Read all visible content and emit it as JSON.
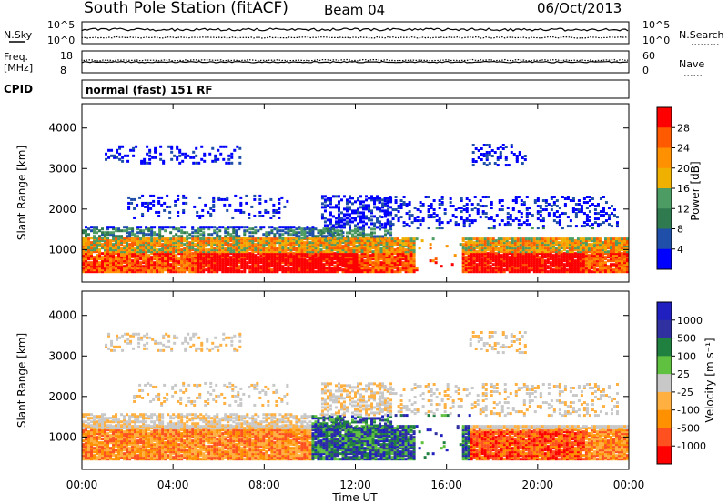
{
  "header": {
    "station": "South Pole Station (fitACF)",
    "beam": "Beam 04",
    "date": "06/Oct/2013"
  },
  "panels": {
    "nsky": {
      "label": "N.Sky",
      "left_ticks": [
        "10^5",
        "10^0"
      ],
      "right_ticks": [
        "10^5",
        "10^0"
      ],
      "right_label": "N.Search"
    },
    "freq": {
      "label_line1": "Freq.",
      "label_line2": "[MHz]",
      "left_ticks": [
        "18",
        "8"
      ],
      "right_ticks": [
        "60",
        "0"
      ],
      "right_label": "Nave"
    },
    "cpid": {
      "label": "CPID",
      "text": "normal (fast) 151 RF"
    }
  },
  "colors": {
    "power_scale": [
      "#0000ff",
      "#1f4fa8",
      "#2f7a4f",
      "#4d9c63",
      "#f0b000",
      "#ff9000",
      "#ff5a00",
      "#ff0000"
    ],
    "velocity_scale": [
      "#ff0000",
      "#ff5020",
      "#ff9000",
      "#ffb040",
      "#c8c8c8",
      "#60c040",
      "#208040",
      "#3030a0",
      "#2020c0"
    ]
  },
  "chart_data": [
    {
      "type": "heatmap",
      "name": "power",
      "ylabel": "Slant Range [km]",
      "yticks": [
        1000,
        2000,
        3000,
        4000
      ],
      "ylim": [
        200,
        4600
      ],
      "xticks": [
        "00:00",
        "04:00",
        "08:00",
        "12:00",
        "16:00",
        "20:00",
        "00:00"
      ],
      "xlim_hours": [
        0,
        24
      ],
      "colorbar": {
        "label": "Power [dB]",
        "ticks": [
          "28",
          "24",
          "20",
          "16",
          "12",
          "8",
          "4"
        ]
      }
    },
    {
      "type": "heatmap",
      "name": "velocity",
      "ylabel": "Slant Range [km]",
      "yticks": [
        1000,
        2000,
        3000,
        4000
      ],
      "ylim": [
        200,
        4600
      ],
      "xticks": [
        "00:00",
        "04:00",
        "08:00",
        "12:00",
        "16:00",
        "20:00",
        "00:00"
      ],
      "xlabel": "Time UT",
      "xlim_hours": [
        0,
        24
      ],
      "colorbar": {
        "label": "Velocity [m s⁻¹]",
        "ticks": [
          "1000",
          "500",
          "100",
          "25",
          "-25",
          "-100",
          "-500",
          "-1000"
        ]
      }
    }
  ]
}
